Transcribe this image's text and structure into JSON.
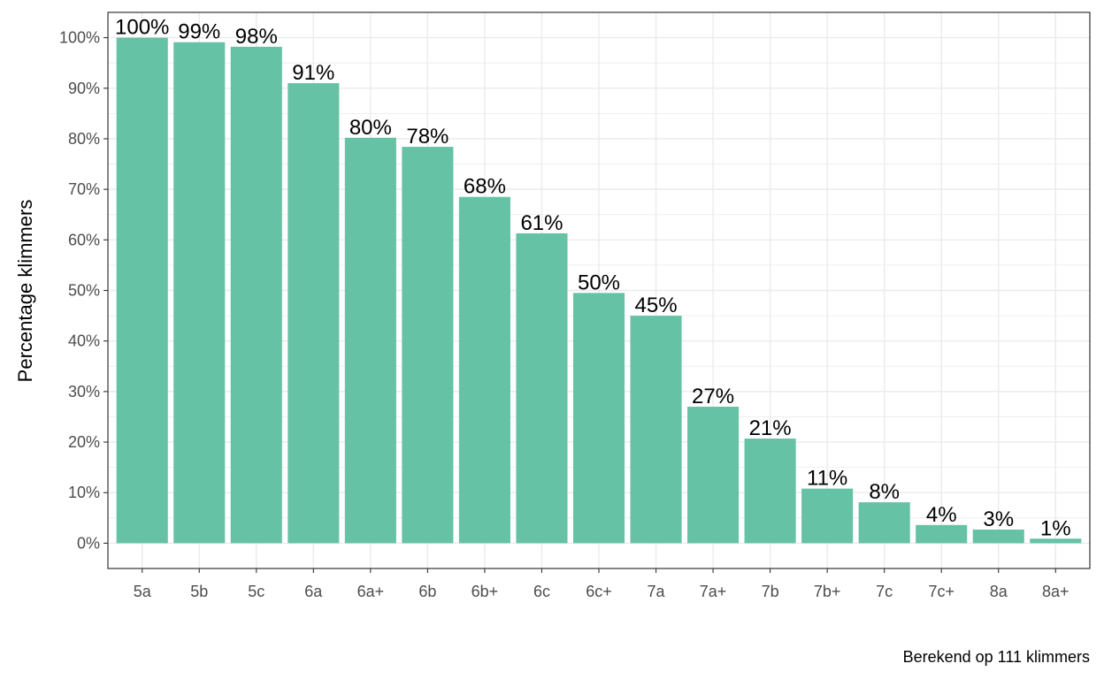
{
  "chart_data": {
    "type": "bar",
    "title": "",
    "xlabel": "",
    "ylabel": "Percentage klimmers",
    "caption": "Berekend op 111 klimmers",
    "categories": [
      "5a",
      "5b",
      "5c",
      "6a",
      "6a+",
      "6b",
      "6b+",
      "6c",
      "6c+",
      "7a",
      "7a+",
      "7b",
      "7b+",
      "7c",
      "7c+",
      "8a",
      "8a+"
    ],
    "values": [
      100,
      99,
      98,
      91,
      80,
      78,
      68,
      61,
      50,
      45,
      27,
      21,
      11,
      8,
      4,
      3,
      1
    ],
    "bar_heights": [
      100,
      99.1,
      98.2,
      91.0,
      80.2,
      78.4,
      68.5,
      61.3,
      49.5,
      45.0,
      27.0,
      20.7,
      10.8,
      8.1,
      3.6,
      2.7,
      0.9
    ],
    "data_labels": [
      "100%",
      "99%",
      "98%",
      "91%",
      "80%",
      "78%",
      "68%",
      "61%",
      "50%",
      "45%",
      "27%",
      "21%",
      "11%",
      "8%",
      "4%",
      "3%",
      "1%"
    ],
    "yticks": [
      0,
      10,
      20,
      30,
      40,
      50,
      60,
      70,
      80,
      90,
      100
    ],
    "ytick_labels": [
      "0%",
      "10%",
      "20%",
      "30%",
      "40%",
      "50%",
      "60%",
      "70%",
      "80%",
      "90%",
      "100%"
    ],
    "ylim": [
      -5,
      105
    ],
    "grid": true,
    "legend": "none",
    "bar_color": "#66c2a5",
    "grid_color": "#ebebeb",
    "panel_border_color": "#333333"
  }
}
